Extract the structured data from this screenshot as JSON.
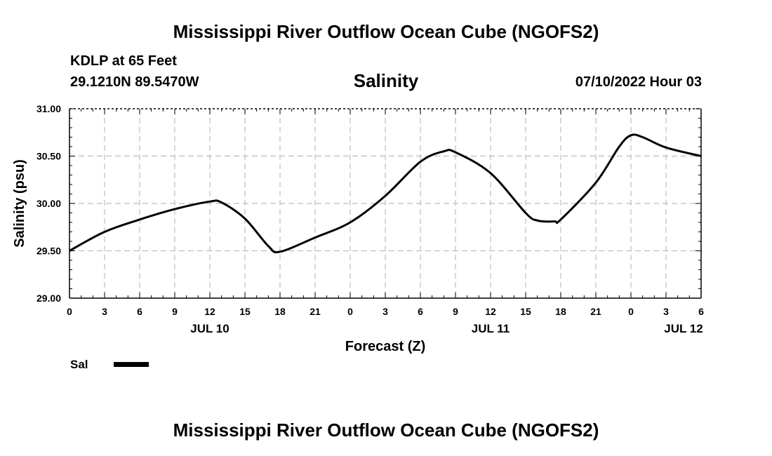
{
  "header": {
    "title": "Mississippi River Outflow Ocean Cube (NGOFS2)",
    "station": "KDLP at 65 Feet",
    "coords": "29.1210N  89.5470W",
    "variable": "Salinity",
    "datetime": "07/10/2022 Hour 03"
  },
  "footer": {
    "title": "Mississippi River Outflow Ocean Cube (NGOFS2)"
  },
  "legend": {
    "label": "Sal",
    "color": "#000000"
  },
  "chart_data": {
    "type": "line",
    "title": "Salinity",
    "xlabel": "Forecast (Z)",
    "ylabel": "Salinity (psu)",
    "ylim": [
      29.0,
      31.0
    ],
    "xlim": [
      0,
      54
    ],
    "grid": true,
    "y_ticks": [
      "29.00",
      "29.50",
      "30.00",
      "30.50",
      "31.00"
    ],
    "x_ticks": [
      {
        "h": 0,
        "label": "0"
      },
      {
        "h": 3,
        "label": "3"
      },
      {
        "h": 6,
        "label": "6"
      },
      {
        "h": 9,
        "label": "9"
      },
      {
        "h": 12,
        "label": "12"
      },
      {
        "h": 15,
        "label": "15"
      },
      {
        "h": 18,
        "label": "18"
      },
      {
        "h": 21,
        "label": "21"
      },
      {
        "h": 24,
        "label": "0"
      },
      {
        "h": 27,
        "label": "3"
      },
      {
        "h": 30,
        "label": "6"
      },
      {
        "h": 33,
        "label": "9"
      },
      {
        "h": 36,
        "label": "12"
      },
      {
        "h": 39,
        "label": "15"
      },
      {
        "h": 42,
        "label": "18"
      },
      {
        "h": 45,
        "label": "21"
      },
      {
        "h": 48,
        "label": "0"
      },
      {
        "h": 51,
        "label": "3"
      },
      {
        "h": 54,
        "label": "6"
      }
    ],
    "day_labels": [
      {
        "h": 12,
        "label": "JUL 10"
      },
      {
        "h": 36,
        "label": "JUL 11"
      },
      {
        "h": 52.5,
        "label": "JUL 12"
      }
    ],
    "series": [
      {
        "name": "Sal",
        "x": [
          0,
          3,
          6,
          9,
          12,
          13,
          15,
          17,
          18,
          21,
          24,
          27,
          30,
          32,
          33,
          36,
          39,
          40,
          41.5,
          42,
          45,
          47,
          48,
          49,
          51,
          54
        ],
        "y": [
          29.5,
          29.7,
          29.83,
          29.94,
          30.02,
          30.01,
          29.84,
          29.55,
          29.49,
          29.64,
          29.8,
          30.08,
          30.44,
          30.55,
          30.54,
          30.32,
          29.9,
          29.82,
          29.81,
          29.83,
          30.22,
          30.6,
          30.72,
          30.7,
          30.59,
          30.5
        ]
      }
    ]
  }
}
